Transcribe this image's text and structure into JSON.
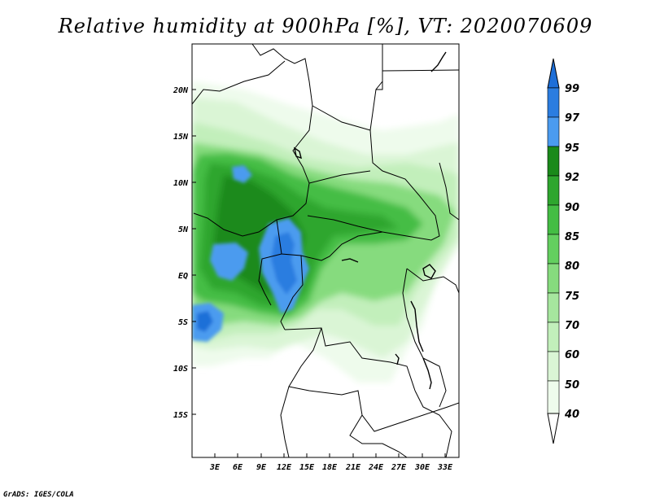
{
  "title": "Relative humidity at 900hPa [%], VT: 2020070609",
  "footer": "GrADS: IGES/COLA",
  "map": {
    "lat_ticks": [
      "20N",
      "15N",
      "10N",
      "5N",
      "EQ",
      "5S",
      "10S",
      "15S"
    ],
    "lon_ticks": [
      "3E",
      "6E",
      "9E",
      "12E",
      "15E",
      "18E",
      "21E",
      "24E",
      "27E",
      "30E",
      "33E"
    ],
    "variable": "relative humidity",
    "level": "900hPa",
    "units": "%"
  },
  "colorbar": {
    "labels": [
      "99",
      "97",
      "95",
      "92",
      "90",
      "85",
      "80",
      "75",
      "70",
      "60",
      "50",
      "40"
    ],
    "colors": {
      "99": "#1e6fd8",
      "97": "#2b7de0",
      "95": "#4b9bef",
      "92": "#1a8a1a",
      "90": "#2ea62e",
      "85": "#44bd44",
      "80": "#63cf5f",
      "75": "#86db7e",
      "70": "#a6e69e",
      "60": "#c2efbb",
      "50": "#daf5d5",
      "40": "#eefbec"
    }
  }
}
